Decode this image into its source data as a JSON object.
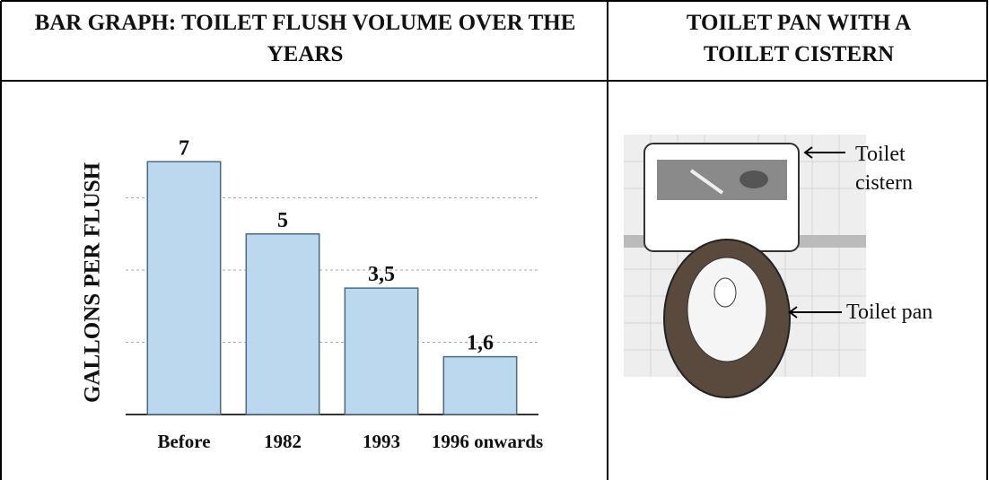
{
  "table": {
    "headers": [
      "BAR GRAPH:  TOILET FLUSH VOLUME OVER THE YEARS",
      "TOILET PAN WITH A TOILET CISTERN"
    ]
  },
  "chart_data": {
    "type": "bar",
    "y_label": "GALLONS PER FLUSH",
    "categories": [
      "Before",
      "1982",
      "1993",
      "1996 onwards"
    ],
    "values": [
      7,
      5,
      3.5,
      1.6
    ],
    "value_labels": [
      "7",
      "5",
      "3,5",
      "1,6"
    ],
    "color": "#bcd8ee",
    "ylim": [
      0,
      8
    ],
    "grid_lines": [
      2,
      4,
      6
    ]
  },
  "image": {
    "labels": [
      "Toilet cistern",
      "Toilet pan"
    ]
  }
}
